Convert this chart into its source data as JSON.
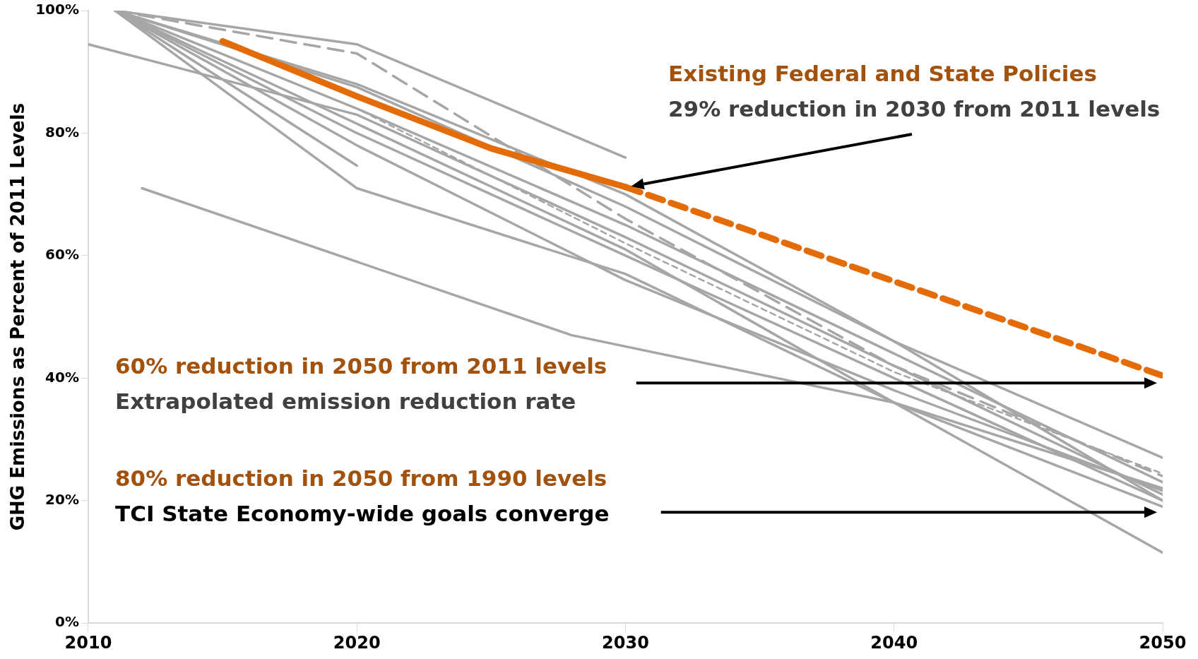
{
  "chart_data": {
    "type": "line",
    "ylabel": "GHG Emissions as Percent of 2011 Levels",
    "xlim": [
      2010,
      2050
    ],
    "xticks": [
      2010,
      2020,
      2030,
      2040,
      2050
    ],
    "ylim": [
      0,
      100
    ],
    "yticks": [
      {
        "value": 0,
        "label": "0%"
      },
      {
        "value": 20,
        "label": "20%"
      },
      {
        "value": 40,
        "label": "40%"
      },
      {
        "value": 60,
        "label": "60%"
      },
      {
        "value": 80,
        "label": "80%"
      },
      {
        "value": 100,
        "label": "100%"
      }
    ],
    "grid": false,
    "legend": false,
    "marker": "none",
    "line_style": "solid",
    "series": [
      {
        "color": "#a6a6a6",
        "x": [
          2011,
          2020,
          2030
        ],
        "values": [
          100,
          94.5,
          76
        ]
      },
      {
        "color": "#a6a6a6",
        "line_style": "dashed",
        "x": [
          2011,
          2020,
          2030,
          2040,
          2050
        ],
        "values": [
          100,
          93,
          66,
          42,
          24
        ]
      },
      {
        "color": "#a6a6a6",
        "x": [
          2010,
          2020,
          2030,
          2040,
          2050
        ],
        "values": [
          94.5,
          83,
          63,
          42,
          21
        ]
      },
      {
        "color": "#a6a6a6",
        "x": [
          2011,
          2020
        ],
        "values": [
          100,
          74.7
        ]
      },
      {
        "color": "#a6a6a6",
        "x": [
          2012,
          2028,
          2040,
          2050
        ],
        "values": [
          71,
          47,
          36,
          22
        ]
      },
      {
        "color": "#a6a6a6",
        "x": [
          2011,
          2020,
          2030,
          2040,
          2050
        ],
        "values": [
          100,
          71,
          57,
          36,
          19
        ]
      },
      {
        "color": "#a6a6a6",
        "x": [
          2011,
          2030,
          2040,
          2050
        ],
        "values": [
          100,
          61,
          36,
          11.5
        ]
      },
      {
        "color": "#a6a6a6",
        "x": [
          2011,
          2020,
          2030,
          2040,
          2050
        ],
        "values": [
          100,
          87.5,
          68,
          46,
          27
        ]
      },
      {
        "color": "#a6a6a6",
        "x": [
          2011,
          2020,
          2030,
          2040,
          2050
        ],
        "values": [
          100,
          84,
          65,
          44,
          23
        ]
      },
      {
        "color": "#a6a6a6",
        "x": [
          2011,
          2020,
          2030,
          2040,
          2050
        ],
        "values": [
          100,
          80,
          60,
          40,
          20
        ]
      },
      {
        "color": "#a6a6a6",
        "x": [
          2011,
          2020,
          2030,
          2040,
          2050
        ],
        "values": [
          100,
          78,
          56,
          38,
          21.6
        ]
      },
      {
        "color": "#a6a6a6",
        "line_style": "dotted",
        "x": [
          2011,
          2020,
          2030,
          2040,
          2050
        ],
        "values": [
          100,
          84,
          62,
          41,
          24.4
        ]
      },
      {
        "color": "#a6a6a6",
        "x": [
          2011,
          2020,
          2030,
          2040,
          2050
        ],
        "values": [
          100,
          88,
          70,
          46,
          20
        ]
      },
      {
        "color": "#e36c09",
        "x": [
          2015,
          2020,
          2025,
          2030
        ],
        "values": [
          95,
          86,
          77.5,
          71.2
        ]
      },
      {
        "color": "#e36c09",
        "line_style": "dashed",
        "x": [
          2030,
          2050
        ],
        "values": [
          71.2,
          40.4
        ]
      }
    ],
    "annotations": [
      "Existing Federal and State Policies",
      "29% reduction in 2030 from 2011 levels",
      "60% reduction in 2050 from 2011 levels",
      "Extrapolated emission reduction rate",
      "80% reduction in 2050 from 1990 levels",
      "TCI State Economy-wide goals converge"
    ]
  }
}
